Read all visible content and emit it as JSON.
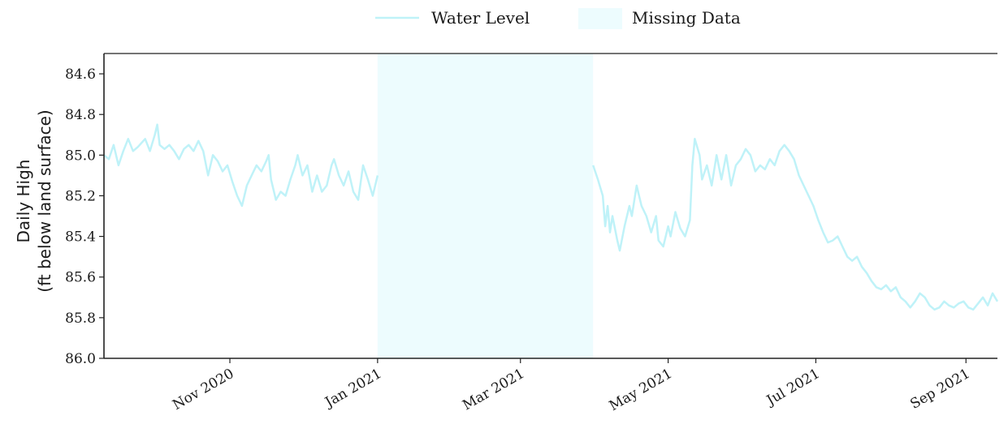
{
  "chart_data": {
    "type": "line",
    "ylabel_line1": "Daily High",
    "ylabel_line2": "(ft below land surface)",
    "xlabel": "",
    "ylim": [
      84.5,
      86.0
    ],
    "y_inverted": true,
    "y_ticks": [
      84.6,
      84.8,
      85.0,
      85.2,
      85.4,
      85.6,
      85.8,
      86.0
    ],
    "y_tick_labels": [
      "84.6",
      "84.8",
      "85.0",
      "85.2",
      "85.4",
      "85.6",
      "85.8",
      "86.0"
    ],
    "xlim": [
      "2020-09-10",
      "2021-09-14"
    ],
    "x_ticks": [
      "2020-11-01",
      "2021-01-01",
      "2021-03-01",
      "2021-05-01",
      "2021-07-01",
      "2021-09-01"
    ],
    "x_tick_labels": [
      "Nov 2020",
      "Jan 2021",
      "Mar 2021",
      "May 2021",
      "Jul 2021",
      "Sep 2021"
    ],
    "legend": {
      "placement": "top-center",
      "entries": [
        {
          "label": "Water Level",
          "kind": "line"
        },
        {
          "label": "Missing Data",
          "kind": "band"
        }
      ]
    },
    "colors": {
      "water_level": "#bff2f8",
      "missing_data": "#edfcfe",
      "axis": "#222222"
    },
    "missing_ranges": [
      [
        "2021-01-01",
        "2021-03-31"
      ]
    ],
    "series": [
      {
        "name": "Water Level",
        "segments": [
          [
            [
              "2020-09-10",
              85.0
            ],
            [
              "2020-09-12",
              85.02
            ],
            [
              "2020-09-14",
              84.95
            ],
            [
              "2020-09-16",
              85.05
            ],
            [
              "2020-09-18",
              84.98
            ],
            [
              "2020-09-20",
              84.92
            ],
            [
              "2020-09-22",
              84.98
            ],
            [
              "2020-09-24",
              84.96
            ],
            [
              "2020-09-27",
              84.92
            ],
            [
              "2020-09-29",
              84.98
            ],
            [
              "2020-10-01",
              84.9
            ],
            [
              "2020-10-02",
              84.85
            ],
            [
              "2020-10-03",
              84.95
            ],
            [
              "2020-10-05",
              84.97
            ],
            [
              "2020-10-07",
              84.95
            ],
            [
              "2020-10-09",
              84.98
            ],
            [
              "2020-10-11",
              85.02
            ],
            [
              "2020-10-13",
              84.97
            ],
            [
              "2020-10-15",
              84.95
            ],
            [
              "2020-10-17",
              84.98
            ],
            [
              "2020-10-19",
              84.93
            ],
            [
              "2020-10-21",
              84.98
            ],
            [
              "2020-10-23",
              85.1
            ],
            [
              "2020-10-25",
              85.0
            ],
            [
              "2020-10-27",
              85.03
            ],
            [
              "2020-10-29",
              85.08
            ],
            [
              "2020-10-31",
              85.05
            ],
            [
              "2020-11-02",
              85.13
            ],
            [
              "2020-11-04",
              85.2
            ],
            [
              "2020-11-06",
              85.25
            ],
            [
              "2020-11-08",
              85.15
            ],
            [
              "2020-11-10",
              85.1
            ],
            [
              "2020-11-12",
              85.05
            ],
            [
              "2020-11-14",
              85.08
            ],
            [
              "2020-11-16",
              85.03
            ],
            [
              "2020-11-17",
              85.0
            ],
            [
              "2020-11-18",
              85.12
            ],
            [
              "2020-11-20",
              85.22
            ],
            [
              "2020-11-22",
              85.18
            ],
            [
              "2020-11-24",
              85.2
            ],
            [
              "2020-11-26",
              85.12
            ],
            [
              "2020-11-28",
              85.05
            ],
            [
              "2020-11-29",
              85.0
            ],
            [
              "2020-12-01",
              85.1
            ],
            [
              "2020-12-03",
              85.05
            ],
            [
              "2020-12-05",
              85.18
            ],
            [
              "2020-12-07",
              85.1
            ],
            [
              "2020-12-09",
              85.18
            ],
            [
              "2020-12-11",
              85.15
            ],
            [
              "2020-12-13",
              85.05
            ],
            [
              "2020-12-14",
              85.02
            ],
            [
              "2020-12-16",
              85.1
            ],
            [
              "2020-12-18",
              85.15
            ],
            [
              "2020-12-20",
              85.08
            ],
            [
              "2020-12-22",
              85.18
            ],
            [
              "2020-12-24",
              85.22
            ],
            [
              "2020-12-26",
              85.05
            ],
            [
              "2020-12-28",
              85.12
            ],
            [
              "2020-12-30",
              85.2
            ],
            [
              "2021-01-01",
              85.1
            ]
          ],
          [
            [
              "2021-03-31",
              85.05
            ],
            [
              "2021-04-02",
              85.12
            ],
            [
              "2021-04-04",
              85.2
            ],
            [
              "2021-04-05",
              85.35
            ],
            [
              "2021-04-06",
              85.25
            ],
            [
              "2021-04-07",
              85.38
            ],
            [
              "2021-04-08",
              85.3
            ],
            [
              "2021-04-10",
              85.42
            ],
            [
              "2021-04-11",
              85.47
            ],
            [
              "2021-04-13",
              85.35
            ],
            [
              "2021-04-15",
              85.25
            ],
            [
              "2021-04-16",
              85.3
            ],
            [
              "2021-04-18",
              85.15
            ],
            [
              "2021-04-20",
              85.25
            ],
            [
              "2021-04-22",
              85.3
            ],
            [
              "2021-04-24",
              85.38
            ],
            [
              "2021-04-26",
              85.3
            ],
            [
              "2021-04-27",
              85.42
            ],
            [
              "2021-04-29",
              85.45
            ],
            [
              "2021-05-01",
              85.35
            ],
            [
              "2021-05-02",
              85.4
            ],
            [
              "2021-05-04",
              85.28
            ],
            [
              "2021-05-06",
              85.36
            ],
            [
              "2021-05-08",
              85.4
            ],
            [
              "2021-05-10",
              85.32
            ],
            [
              "2021-05-11",
              85.05
            ],
            [
              "2021-05-12",
              84.92
            ],
            [
              "2021-05-14",
              85.0
            ],
            [
              "2021-05-15",
              85.12
            ],
            [
              "2021-05-17",
              85.05
            ],
            [
              "2021-05-19",
              85.15
            ],
            [
              "2021-05-21",
              85.0
            ],
            [
              "2021-05-23",
              85.12
            ],
            [
              "2021-05-25",
              85.0
            ],
            [
              "2021-05-27",
              85.15
            ],
            [
              "2021-05-29",
              85.05
            ],
            [
              "2021-05-31",
              85.02
            ],
            [
              "2021-06-02",
              84.97
            ],
            [
              "2021-06-04",
              85.0
            ],
            [
              "2021-06-06",
              85.08
            ],
            [
              "2021-06-08",
              85.05
            ],
            [
              "2021-06-10",
              85.07
            ],
            [
              "2021-06-12",
              85.02
            ],
            [
              "2021-06-14",
              85.05
            ],
            [
              "2021-06-16",
              84.98
            ],
            [
              "2021-06-18",
              84.95
            ],
            [
              "2021-06-20",
              84.98
            ],
            [
              "2021-06-22",
              85.02
            ],
            [
              "2021-06-24",
              85.1
            ],
            [
              "2021-06-26",
              85.15
            ],
            [
              "2021-06-28",
              85.2
            ],
            [
              "2021-06-30",
              85.25
            ],
            [
              "2021-07-02",
              85.32
            ],
            [
              "2021-07-04",
              85.38
            ],
            [
              "2021-07-06",
              85.43
            ],
            [
              "2021-07-08",
              85.42
            ],
            [
              "2021-07-10",
              85.4
            ],
            [
              "2021-07-12",
              85.45
            ],
            [
              "2021-07-14",
              85.5
            ],
            [
              "2021-07-16",
              85.52
            ],
            [
              "2021-07-18",
              85.5
            ],
            [
              "2021-07-20",
              85.55
            ],
            [
              "2021-07-22",
              85.58
            ],
            [
              "2021-07-24",
              85.62
            ],
            [
              "2021-07-26",
              85.65
            ],
            [
              "2021-07-28",
              85.66
            ],
            [
              "2021-07-30",
              85.64
            ],
            [
              "2021-08-01",
              85.67
            ],
            [
              "2021-08-03",
              85.65
            ],
            [
              "2021-08-05",
              85.7
            ],
            [
              "2021-08-07",
              85.72
            ],
            [
              "2021-08-09",
              85.75
            ],
            [
              "2021-08-11",
              85.72
            ],
            [
              "2021-08-13",
              85.68
            ],
            [
              "2021-08-15",
              85.7
            ],
            [
              "2021-08-17",
              85.74
            ],
            [
              "2021-08-19",
              85.76
            ],
            [
              "2021-08-21",
              85.75
            ],
            [
              "2021-08-23",
              85.72
            ],
            [
              "2021-08-25",
              85.74
            ],
            [
              "2021-08-27",
              85.75
            ],
            [
              "2021-08-29",
              85.73
            ],
            [
              "2021-08-31",
              85.72
            ],
            [
              "2021-09-02",
              85.75
            ],
            [
              "2021-09-04",
              85.76
            ],
            [
              "2021-09-06",
              85.73
            ],
            [
              "2021-09-08",
              85.7
            ],
            [
              "2021-09-10",
              85.74
            ],
            [
              "2021-09-12",
              85.68
            ],
            [
              "2021-09-14",
              85.72
            ]
          ]
        ]
      }
    ]
  }
}
